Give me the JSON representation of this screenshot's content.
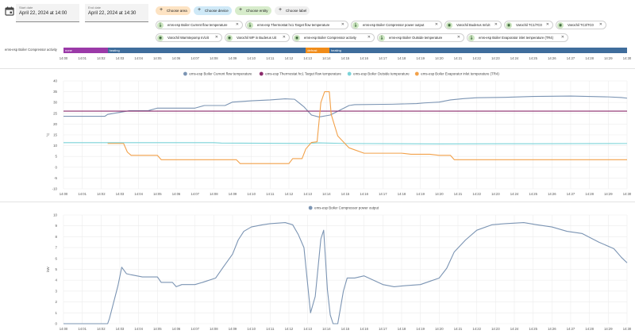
{
  "header": {
    "start_label": "Start date",
    "start_value": "April 22, 2024 at 14:00",
    "end_label": "End date",
    "end_value": "April 22, 2024 at 14:30"
  },
  "target_buttons": [
    {
      "label": "Choose area",
      "color": "#fde3c3"
    },
    {
      "label": "Choose device",
      "color": "#cfe9f7"
    },
    {
      "label": "Choose entity",
      "color": "#d7eccb"
    },
    {
      "label": "Choose label",
      "color": "#efefef"
    }
  ],
  "chips_row1": [
    "ems-esp Boiler Current flow temperature",
    "ems-esp Thermostat hc1 Target flow temperature",
    "ems-esp Boiler Compressor power output",
    "Varochil Buderus In/Uit",
    "Varochil TC1/TC0",
    "Varochil TC3/TC0"
  ],
  "chips_row2": [
    "Varochil Warmtepomp In/Uit",
    "Varochil WP in Buderus Uit",
    "ems-esp Boiler Compressor activity",
    "ems-esp Boiler Outside temperature",
    "ems-esp Boiler Evaporator inlet temperature (TR4)"
  ],
  "timeline": {
    "label": "ems-esp Boiler Compressor activity",
    "segments": [
      {
        "label": "none",
        "start": 0,
        "end": 2.35,
        "color": "#9b3aa8"
      },
      {
        "label": "heating",
        "start": 2.35,
        "end": 12.9,
        "color": "#3f6d9c"
      },
      {
        "label": "defrost",
        "start": 12.9,
        "end": 14.15,
        "color": "#f08c1a"
      },
      {
        "label": "heating",
        "start": 14.15,
        "end": 30,
        "color": "#3f6d9c"
      }
    ]
  },
  "time_ticks": [
    "14:00",
    "14:01",
    "14:02",
    "14:03",
    "14:04",
    "14:05",
    "14:06",
    "14:07",
    "14:08",
    "14:09",
    "14:10",
    "14:11",
    "14:12",
    "14:13",
    "14:14",
    "14:15",
    "14:16",
    "14:17",
    "14:18",
    "14:19",
    "14:20",
    "14:21",
    "14:22",
    "14:23",
    "14:24",
    "14:25",
    "14:26",
    "14:27",
    "14:28",
    "14:29",
    "14:30"
  ],
  "chart_data": [
    {
      "type": "line",
      "title": "",
      "xlabel": "",
      "ylabel": "°C",
      "x_range_minutes": [
        0,
        30
      ],
      "ylim": [
        -10,
        40
      ],
      "y_ticks": [
        "-10",
        "-5",
        "0",
        "5",
        "10",
        "15",
        "20",
        "25",
        "30",
        "35",
        "40"
      ],
      "legend": "top",
      "series": [
        {
          "name": "ems-esp Boiler Current flow temperature",
          "color": "#7b94b3",
          "points": [
            [
              0,
              23.6
            ],
            [
              2.2,
              23.6
            ],
            [
              2.35,
              24.5
            ],
            [
              3.5,
              26.2
            ],
            [
              4.5,
              26.2
            ],
            [
              5,
              27.4
            ],
            [
              7,
              27.4
            ],
            [
              7.5,
              28.6
            ],
            [
              8.6,
              28.6
            ],
            [
              9,
              30.2
            ],
            [
              10,
              30.8
            ],
            [
              11,
              31.2
            ],
            [
              11.8,
              31.7
            ],
            [
              12.3,
              31.5
            ],
            [
              12.8,
              28
            ],
            [
              13.2,
              24.2
            ],
            [
              13.6,
              23.3
            ],
            [
              14.2,
              24.2
            ],
            [
              14.7,
              26.4
            ],
            [
              15.2,
              28.6
            ],
            [
              15.5,
              29
            ],
            [
              17.5,
              29.2
            ],
            [
              18.8,
              29.5
            ],
            [
              19.2,
              29.8
            ],
            [
              20,
              30.2
            ],
            [
              20.6,
              31.2
            ],
            [
              21.3,
              31.8
            ],
            [
              22,
              32.2
            ],
            [
              23.5,
              32.4
            ],
            [
              25,
              32.8
            ],
            [
              27,
              33
            ],
            [
              29,
              32.6
            ],
            [
              29.7,
              32.3
            ],
            [
              30,
              32
            ]
          ]
        },
        {
          "name": "ems-esp Thermostat hc1 Target flow temperature",
          "color": "#8b2a6b",
          "points": [
            [
              0,
              26
            ],
            [
              30,
              26
            ]
          ]
        },
        {
          "name": "ems-esp Boiler Outside temperature",
          "color": "#7bd3d8",
          "points": [
            [
              0,
              11.4
            ],
            [
              8,
              11.4
            ],
            [
              8.4,
              11.2
            ],
            [
              13,
              11
            ],
            [
              13.6,
              11.3
            ],
            [
              15,
              11
            ],
            [
              20,
              10.8
            ],
            [
              25,
              10.9
            ],
            [
              30,
              11
            ]
          ]
        },
        {
          "name": "ems-esp Boiler Evaporator inlet temperature (TR4)",
          "color": "#f2a14a",
          "points": [
            [
              2.35,
              11
            ],
            [
              3.2,
              11
            ],
            [
              3.4,
              7
            ],
            [
              3.6,
              5.5
            ],
            [
              5,
              5.5
            ],
            [
              5.2,
              3.5
            ],
            [
              9.2,
              3.5
            ],
            [
              9.4,
              1.7
            ],
            [
              12,
              1.7
            ],
            [
              12.2,
              4
            ],
            [
              12.7,
              4
            ],
            [
              12.9,
              8.5
            ],
            [
              13.2,
              11.5
            ],
            [
              13.5,
              11.8
            ],
            [
              13.7,
              30
            ],
            [
              13.9,
              35
            ],
            [
              14.15,
              35
            ],
            [
              14.25,
              24.5
            ],
            [
              14.6,
              14.5
            ],
            [
              15.2,
              9
            ],
            [
              16,
              6.5
            ],
            [
              18,
              6.5
            ],
            [
              18.5,
              6
            ],
            [
              19.5,
              6
            ],
            [
              20,
              5.5
            ],
            [
              20.6,
              5.5
            ],
            [
              20.8,
              3.5
            ],
            [
              30,
              3.5
            ]
          ]
        }
      ]
    },
    {
      "type": "line",
      "title": "",
      "xlabel": "",
      "ylabel": "kW",
      "x_range_minutes": [
        0,
        30
      ],
      "ylim": [
        0,
        10
      ],
      "y_ticks": [
        "0",
        "1",
        "2",
        "3",
        "4",
        "5",
        "6",
        "7",
        "8",
        "9",
        "10"
      ],
      "legend": "top",
      "series": [
        {
          "name": "ems-esp Boiler Compressor power output",
          "color": "#7b94b3",
          "points": [
            [
              0,
              0
            ],
            [
              2.35,
              0
            ],
            [
              2.45,
              0.5
            ],
            [
              2.9,
              3.5
            ],
            [
              3.1,
              5.2
            ],
            [
              3.35,
              4.6
            ],
            [
              3.6,
              4.5
            ],
            [
              4.2,
              4.3
            ],
            [
              5,
              4.3
            ],
            [
              5.2,
              3.8
            ],
            [
              5.8,
              3.8
            ],
            [
              6,
              3.4
            ],
            [
              6.3,
              3.6
            ],
            [
              7,
              3.6
            ],
            [
              7.4,
              3.8
            ],
            [
              8.1,
              4.2
            ],
            [
              8.5,
              5.2
            ],
            [
              9,
              6.4
            ],
            [
              9.3,
              7.7
            ],
            [
              9.6,
              8.5
            ],
            [
              10,
              8.9
            ],
            [
              10.6,
              9.1
            ],
            [
              11,
              9.2
            ],
            [
              11.8,
              9.3
            ],
            [
              12.2,
              9.1
            ],
            [
              12.5,
              8.2
            ],
            [
              12.8,
              7
            ],
            [
              13.15,
              1
            ],
            [
              13.4,
              2.5
            ],
            [
              13.7,
              7.8
            ],
            [
              13.85,
              8.6
            ],
            [
              14.05,
              3.1
            ],
            [
              14.2,
              0.8
            ],
            [
              14.35,
              0
            ],
            [
              14.6,
              0
            ],
            [
              14.9,
              3
            ],
            [
              15.1,
              4.2
            ],
            [
              15.5,
              4.2
            ],
            [
              16,
              4.4
            ],
            [
              17,
              3.6
            ],
            [
              17.6,
              3.4
            ],
            [
              18.2,
              3.5
            ],
            [
              19,
              3.6
            ],
            [
              19.5,
              3.9
            ],
            [
              20,
              4.2
            ],
            [
              20.4,
              5.1
            ],
            [
              20.8,
              6.6
            ],
            [
              21.4,
              7.7
            ],
            [
              22,
              8.6
            ],
            [
              22.8,
              9.1
            ],
            [
              23.5,
              9.2
            ],
            [
              24.5,
              9.3
            ],
            [
              25.2,
              9.1
            ],
            [
              26,
              8.9
            ],
            [
              26.8,
              8.5
            ],
            [
              27.6,
              8.3
            ],
            [
              28.5,
              7.5
            ],
            [
              29.3,
              6.9
            ],
            [
              29.7,
              6.1
            ],
            [
              30,
              5.6
            ]
          ]
        }
      ]
    }
  ]
}
